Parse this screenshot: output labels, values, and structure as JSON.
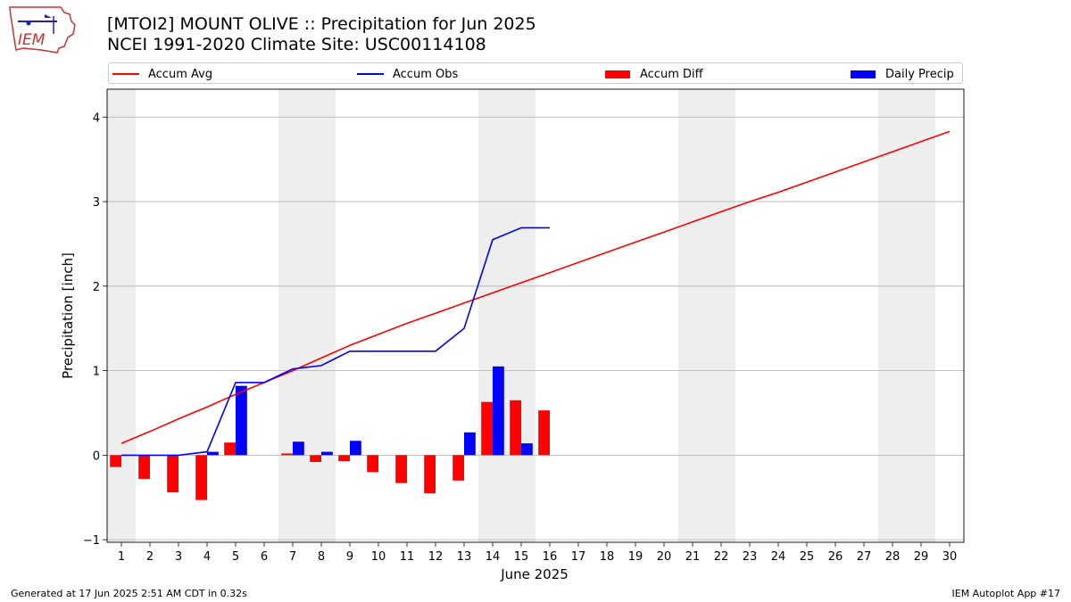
{
  "header": {
    "title_line1": "[MTOI2] MOUNT OLIVE :: Precipitation for Jun 2025",
    "title_line2": "NCEI 1991-2020 Climate Site: USC00114108"
  },
  "logo": {
    "text": "IEM"
  },
  "footer": {
    "left": "Generated at 17 Jun 2025 2:51 AM CDT in 0.32s",
    "right": "IEM Autoplot App #17"
  },
  "colors": {
    "avg": "#ff0000",
    "obs": "#0000ff",
    "diff": "#ff0000",
    "daily": "#0000ff",
    "weekend": "#eeeeee",
    "grid": "#b0b0b0"
  },
  "legend": [
    {
      "label": "Accum Avg",
      "kind": "line",
      "color": "#ff0000"
    },
    {
      "label": "Accum Obs",
      "kind": "line",
      "color": "#0000ff"
    },
    {
      "label": "Accum Diff",
      "kind": "box",
      "color": "#ff0000"
    },
    {
      "label": "Daily Precip",
      "kind": "box",
      "color": "#0000ff"
    }
  ],
  "chart_data": {
    "type": "bar",
    "title": "[MTOI2] MOUNT OLIVE :: Precipitation for Jun 2025",
    "subtitle": "NCEI 1991-2020 Climate Site: USC00114108",
    "xlabel": "June 2025",
    "ylabel": "Precipitation [inch]",
    "xlim": [
      0.5,
      30.5
    ],
    "ylim": [
      -1.03,
      4.33
    ],
    "yticks": [
      -1,
      0,
      1,
      2,
      3,
      4
    ],
    "xticks": [
      1,
      2,
      3,
      4,
      5,
      6,
      7,
      8,
      9,
      10,
      11,
      12,
      13,
      14,
      15,
      16,
      17,
      18,
      19,
      20,
      21,
      22,
      23,
      24,
      25,
      26,
      27,
      28,
      29,
      30
    ],
    "grid": "y",
    "weekend_days": [
      1,
      7,
      8,
      14,
      15,
      21,
      22,
      28,
      29
    ],
    "accum_avg": {
      "days": [
        1,
        2,
        3,
        4,
        5,
        6,
        7,
        8,
        9,
        10,
        11,
        12,
        13,
        14,
        15,
        16,
        17,
        18,
        19,
        20,
        21,
        22,
        23,
        24,
        25,
        26,
        27,
        28,
        29,
        30
      ],
      "values": [
        0.14,
        0.28,
        0.43,
        0.57,
        0.72,
        0.86,
        1.0,
        1.15,
        1.3,
        1.43,
        1.56,
        1.68,
        1.8,
        1.92,
        2.04,
        2.16,
        2.28,
        2.4,
        2.52,
        2.64,
        2.76,
        2.88,
        3.0,
        3.11,
        3.23,
        3.35,
        3.47,
        3.59,
        3.71,
        3.83
      ]
    },
    "accum_obs": {
      "days": [
        1,
        2,
        3,
        4,
        5,
        6,
        7,
        8,
        9,
        10,
        11,
        12,
        13,
        14,
        15,
        16
      ],
      "values": [
        0.0,
        0.0,
        0.0,
        0.04,
        0.86,
        0.86,
        1.02,
        1.06,
        1.23,
        1.23,
        1.23,
        1.23,
        1.5,
        2.55,
        2.69,
        2.69
      ]
    },
    "accum_diff": {
      "days": [
        1,
        2,
        3,
        4,
        5,
        6,
        7,
        8,
        9,
        10,
        11,
        12,
        13,
        14,
        15,
        16
      ],
      "values": [
        -0.14,
        -0.28,
        -0.44,
        -0.53,
        0.15,
        0.0,
        0.02,
        -0.08,
        -0.07,
        -0.2,
        -0.33,
        -0.45,
        -0.3,
        0.63,
        0.65,
        0.53
      ]
    },
    "daily_precip": {
      "days": [
        1,
        2,
        3,
        4,
        5,
        6,
        7,
        8,
        9,
        10,
        11,
        12,
        13,
        14,
        15,
        16
      ],
      "values": [
        0.0,
        0.0,
        0.0,
        0.04,
        0.82,
        0.0,
        0.16,
        0.04,
        0.17,
        0.0,
        0.0,
        0.0,
        0.27,
        1.05,
        0.14,
        0.0
      ]
    }
  }
}
